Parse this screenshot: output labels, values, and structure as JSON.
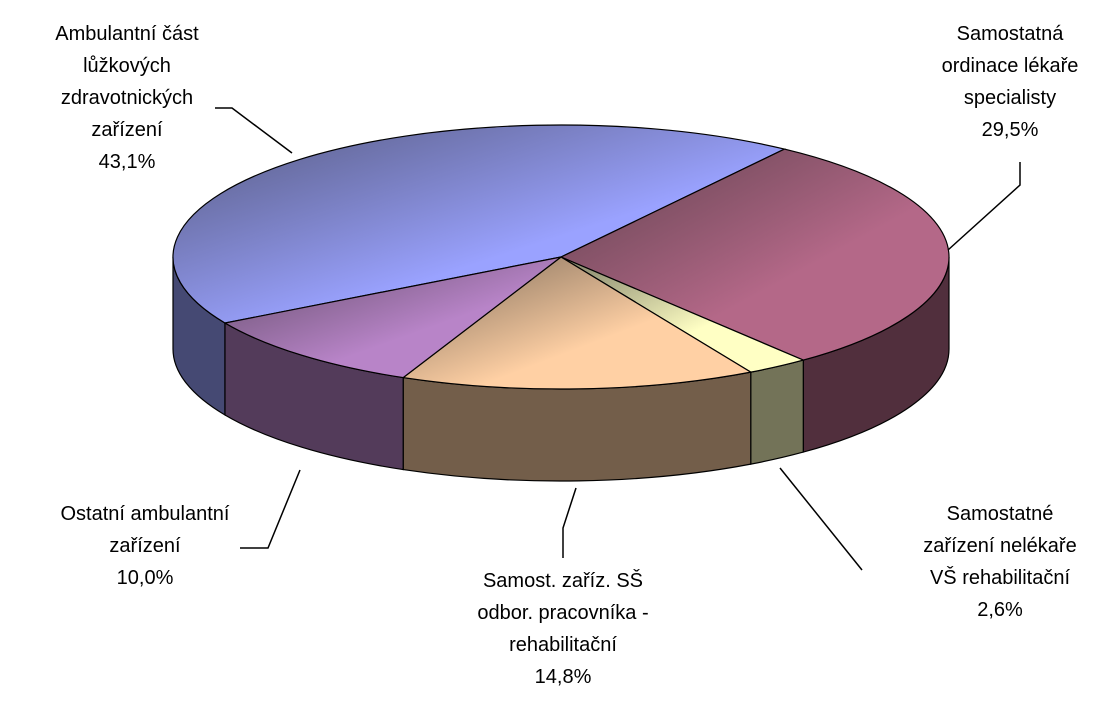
{
  "chart_data": {
    "type": "pie3d",
    "categories": [
      "Ambulantní část\nlůžkových\nzdravotnických\nzařízení",
      "Samostatná\nordinace lékaře\nspecialisty",
      "Samostatné\nzařízení nelékaře\nVŠ rehabilitační",
      "Samost. zaříz. SŠ\nodbor. pracovníka -\nrehabilitační",
      "Ostatní ambulantní\nzařízení"
    ],
    "values": [
      43.1,
      29.5,
      2.6,
      14.8,
      10.0
    ],
    "value_labels": [
      "43,1%",
      "29,5%",
      "2,6%",
      "14,8%",
      "10,0%"
    ],
    "colors": [
      "#9aa2ff",
      "#b46888",
      "#ffffc4",
      "#ffd0a4",
      "#b884c8"
    ]
  }
}
